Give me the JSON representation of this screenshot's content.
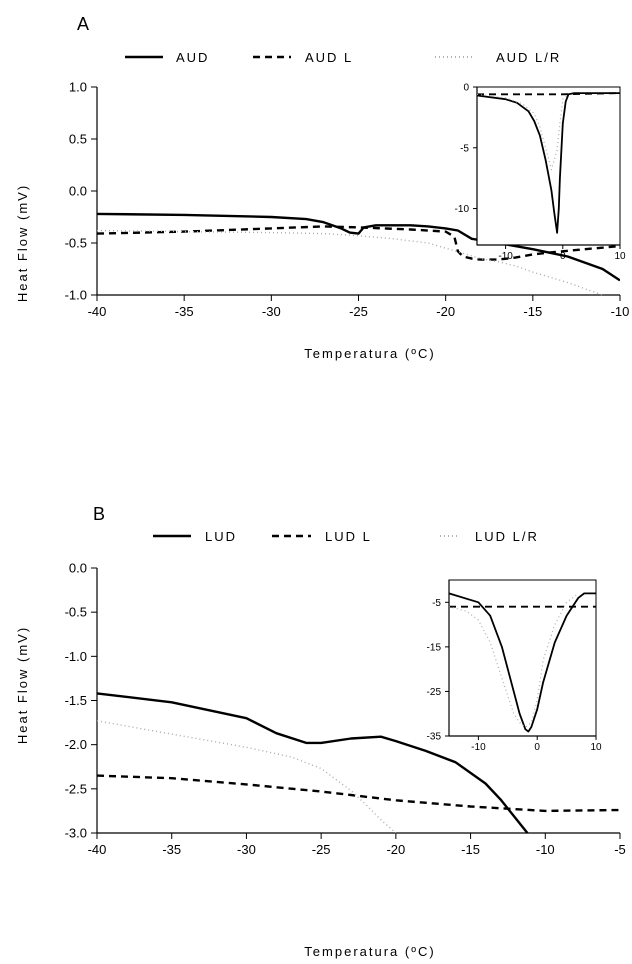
{
  "chart_data": [
    {
      "panel": "A",
      "type": "line",
      "xlabel": "Temperatura (ºC)",
      "ylabel": "Heat Flow (mV)",
      "xlim": [
        -40,
        -10
      ],
      "ylim": [
        -1.0,
        1.0
      ],
      "xticks": [
        "-40",
        "-35",
        "-30",
        "-25",
        "-20",
        "-15",
        "-10"
      ],
      "yticks": [
        "1.0",
        "0.5",
        "0.0",
        "-0.5",
        "-1.0"
      ],
      "legend_position": "top",
      "series": [
        {
          "name": "AUD",
          "style": "solid",
          "x": [
            -40,
            -35,
            -30,
            -28,
            -27,
            -26,
            -25.5,
            -25,
            -24.7,
            -24,
            -23,
            -22,
            -21,
            -20,
            -19.3,
            -19,
            -18.5,
            -17,
            -15,
            -13,
            -11,
            -10
          ],
          "y": [
            -0.22,
            -0.23,
            -0.25,
            -0.27,
            -0.3,
            -0.36,
            -0.4,
            -0.41,
            -0.35,
            -0.33,
            -0.33,
            -0.33,
            -0.34,
            -0.36,
            -0.38,
            -0.41,
            -0.46,
            -0.5,
            -0.56,
            -0.63,
            -0.75,
            -0.86
          ]
        },
        {
          "name": "AUD L",
          "style": "dashed",
          "x": [
            -40,
            -35,
            -30,
            -27,
            -25,
            -22,
            -20,
            -19.5,
            -19.3,
            -19,
            -18.5,
            -18,
            -17,
            -16,
            -15,
            -14,
            -12,
            -10
          ],
          "y": [
            -0.41,
            -0.39,
            -0.36,
            -0.34,
            -0.35,
            -0.37,
            -0.39,
            -0.44,
            -0.58,
            -0.63,
            -0.65,
            -0.66,
            -0.66,
            -0.64,
            -0.61,
            -0.59,
            -0.56,
            -0.53
          ]
        },
        {
          "name": "AUD L/R",
          "style": "dotted",
          "x": [
            -40,
            -35,
            -30,
            -27,
            -25,
            -23,
            -21,
            -20,
            -19,
            -18,
            -17,
            -16,
            -15,
            -14,
            -13,
            -12,
            -11
          ],
          "y": [
            -0.38,
            -0.39,
            -0.4,
            -0.41,
            -0.43,
            -0.46,
            -0.5,
            -0.55,
            -0.6,
            -0.65,
            -0.68,
            -0.72,
            -0.78,
            -0.83,
            -0.88,
            -0.94,
            -1.0
          ]
        }
      ],
      "inset": {
        "xlim": [
          -15,
          10
        ],
        "ylim": [
          -13,
          0
        ],
        "xticks": [
          "-10",
          "0",
          "10"
        ],
        "yticks": [
          "0",
          "-5",
          "-10"
        ],
        "series": [
          {
            "name": "AUD",
            "style": "solid",
            "x": [
              -15,
              -10,
              -8,
              -6,
              -5,
              -4,
              -3,
              -2,
              -1.5,
              -1,
              -0.7,
              -0.5,
              0,
              0.5,
              1,
              2,
              5,
              10
            ],
            "y": [
              -0.7,
              -1.0,
              -1.3,
              -2.0,
              -2.8,
              -4.0,
              -6.0,
              -8.5,
              -10.3,
              -12.0,
              -10.0,
              -7.5,
              -3.0,
              -1.2,
              -0.6,
              -0.5,
              -0.5,
              -0.5
            ]
          },
          {
            "name": "AUD L",
            "style": "dashed",
            "x": [
              -15,
              -10,
              -5,
              0,
              5,
              10
            ],
            "y": [
              -0.6,
              -0.6,
              -0.6,
              -0.6,
              -0.55,
              -0.5
            ]
          },
          {
            "name": "AUD L/R",
            "style": "dotted",
            "x": [
              -15,
              -10,
              -7,
              -5,
              -4,
              -3,
              -2,
              -1,
              -0.5,
              0,
              1
            ],
            "y": [
              -0.6,
              -0.9,
              -1.4,
              -2.2,
              -3.3,
              -5.0,
              -6.8,
              -5.2,
              -3.0,
              -1.0,
              -0.6
            ]
          }
        ]
      }
    },
    {
      "panel": "B",
      "type": "line",
      "xlabel": "Temperatura (ºC)",
      "ylabel": "Heat Flow (mV)",
      "xlim": [
        -40,
        -5
      ],
      "ylim": [
        -3.0,
        0.0
      ],
      "xticks": [
        "-40",
        "-35",
        "-30",
        "-25",
        "-20",
        "-15",
        "-10",
        "-5"
      ],
      "yticks": [
        "0.0",
        "-0.5",
        "-1.0",
        "-1.5",
        "-2.0",
        "-2.5",
        "-3.0"
      ],
      "legend_position": "top",
      "series": [
        {
          "name": "LUD",
          "style": "solid",
          "x": [
            -40,
            -35,
            -30,
            -28,
            -26,
            -25,
            -23,
            -21,
            -20,
            -18,
            -16,
            -14,
            -13,
            -12,
            -11.2
          ],
          "y": [
            -1.42,
            -1.52,
            -1.7,
            -1.87,
            -1.98,
            -1.98,
            -1.93,
            -1.91,
            -1.96,
            -2.07,
            -2.2,
            -2.44,
            -2.62,
            -2.83,
            -3.0
          ]
        },
        {
          "name": "LUD L",
          "style": "dashed",
          "x": [
            -40,
            -35,
            -30,
            -25,
            -20,
            -15,
            -10,
            -5
          ],
          "y": [
            -2.35,
            -2.38,
            -2.45,
            -2.53,
            -2.63,
            -2.7,
            -2.75,
            -2.74
          ]
        },
        {
          "name": "LUD L/R",
          "style": "dotted",
          "x": [
            -40,
            -35,
            -30,
            -27,
            -25,
            -23,
            -22,
            -21,
            -20
          ],
          "y": [
            -1.73,
            -1.88,
            -2.03,
            -2.14,
            -2.27,
            -2.52,
            -2.68,
            -2.85,
            -3.0
          ]
        }
      ],
      "inset": {
        "xlim": [
          -15,
          10
        ],
        "ylim": [
          -35,
          0
        ],
        "xticks": [
          "-10",
          "0",
          "10"
        ],
        "yticks": [
          "-5",
          "-15",
          "-25",
          "-35"
        ],
        "series": [
          {
            "name": "LUD",
            "style": "solid",
            "x": [
              -15,
              -10,
              -8,
              -6,
              -4,
              -3,
              -2,
              -1.5,
              -1,
              0,
              1,
              3,
              5,
              7,
              8,
              10
            ],
            "y": [
              -3,
              -5,
              -8,
              -15,
              -25,
              -30,
              -33.5,
              -34,
              -33,
              -29,
              -23,
              -14,
              -8,
              -4,
              -3,
              -3
            ]
          },
          {
            "name": "LUD L",
            "style": "dashed",
            "x": [
              -15,
              -10,
              -5,
              0,
              5,
              10
            ],
            "y": [
              -6,
              -6,
              -6,
              -6,
              -6,
              -6
            ]
          },
          {
            "name": "LUD L/R",
            "style": "dotted",
            "x": [
              -15,
              -12,
              -10,
              -8,
              -6,
              -4,
              -3,
              -2,
              -1,
              0,
              1,
              3,
              5,
              7
            ],
            "y": [
              -6,
              -7,
              -9,
              -14,
              -22,
              -30,
              -32,
              -33,
              -32,
              -27,
              -18,
              -10,
              -5,
              -3
            ]
          }
        ]
      }
    }
  ]
}
